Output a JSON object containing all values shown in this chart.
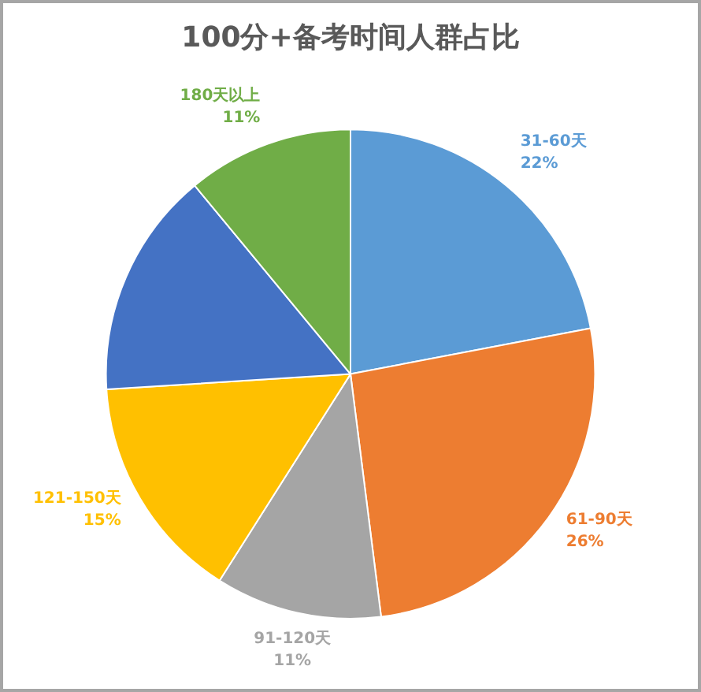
{
  "chart_data": {
    "type": "pie",
    "title": "100分+备考时间人群占比",
    "categories": [
      "31-60天",
      "61-90天",
      "91-120天",
      "121-150天",
      null,
      "180天以上"
    ],
    "values": [
      22,
      26,
      11,
      15,
      15,
      11
    ],
    "value_labels": [
      "22%",
      "26%",
      "11%",
      "15%",
      null,
      "11%"
    ],
    "colors": [
      "#5b9bd5",
      "#ed7d31",
      "#a5a5a5",
      "#ffc000",
      "#4472c4",
      "#70ad47"
    ],
    "legend": false
  }
}
